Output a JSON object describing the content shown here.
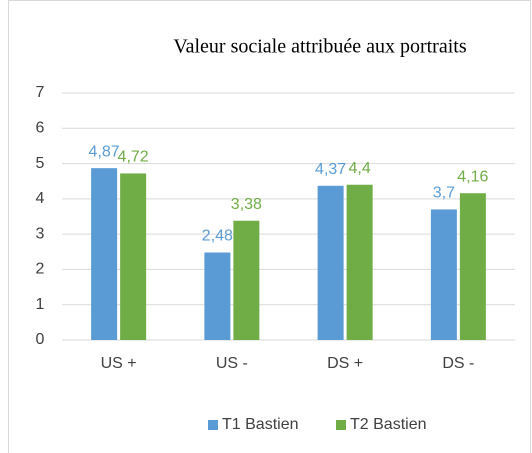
{
  "chart_data": {
    "type": "bar",
    "title": "Valeur sociale attribuée aux portraits",
    "categories": [
      "US +",
      "US -",
      "DS +",
      "DS -"
    ],
    "series": [
      {
        "name": "T1 Bastien",
        "color": "#5b9bd5",
        "values": [
          4.87,
          2.48,
          4.37,
          3.7
        ],
        "value_labels": [
          "4,87",
          "2,48",
          "4,37",
          "3,7"
        ]
      },
      {
        "name": "T2 Bastien",
        "color": "#70ad47",
        "values": [
          4.72,
          3.38,
          4.4,
          4.16
        ],
        "value_labels": [
          "4,72",
          "3,38",
          "4,4",
          "4,16"
        ]
      }
    ],
    "ylim": [
      0,
      7
    ],
    "yticks": [
      0,
      1,
      2,
      3,
      4,
      5,
      6,
      7
    ],
    "grid": true,
    "legend": "bottom"
  }
}
